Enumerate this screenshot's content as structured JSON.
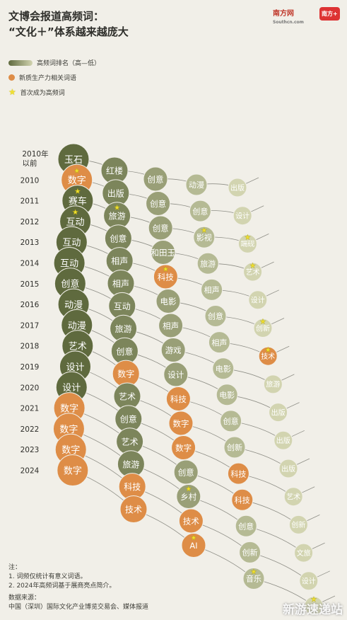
{
  "header": {
    "title_line1": "文博会报道高频词：",
    "title_line2": "“文化＋”体系越来越庞大",
    "logo_site": "南方网",
    "logo_site_sub": "Southcn.com",
    "logo_app": "南方+"
  },
  "legend": {
    "rank": "高频词排名（高—低）",
    "new_productivity": "新质生产力相关词语",
    "first_time": "首次成为高频词"
  },
  "notes": {
    "heading": "注：",
    "note1": "1. 词频仅统计有意义词语。",
    "note2": "2. 2024年高频词基于展商亮点简介。",
    "source_heading": "数据来源：",
    "source": "中国（深圳）国际文化产业博览交易会、媒体报道"
  },
  "watermark": "新游速递站",
  "colors": {
    "rank_dark": "#5f6a3e",
    "rank_light": "#d2d4b0",
    "new_productivity": "#de8d47",
    "first_time_star": "#f0e030",
    "background": "#f1efe8"
  },
  "chart_data": {
    "type": "ranked-bubble",
    "years": [
      "2010年以前",
      "2010",
      "2011",
      "2012",
      "2013",
      "2014",
      "2015",
      "2016",
      "2017",
      "2018",
      "2019",
      "2020",
      "2021",
      "2022",
      "2023",
      "2024"
    ],
    "series": [
      {
        "year": "2010年以前",
        "words": [
          {
            "w": "玉石"
          },
          {
            "w": "红楼"
          },
          {
            "w": "创意"
          },
          {
            "w": "动漫"
          },
          {
            "w": "出版"
          }
        ]
      },
      {
        "year": "2010",
        "words": [
          {
            "w": "数字",
            "np": true,
            "star": true
          },
          {
            "w": "出版"
          },
          {
            "w": "创意"
          },
          {
            "w": "创意"
          },
          {
            "w": "设计"
          }
        ]
      },
      {
        "year": "2011",
        "words": [
          {
            "w": "赛车",
            "star": true
          },
          {
            "w": "旅游",
            "star": true
          },
          {
            "w": "创意"
          },
          {
            "w": "影视",
            "star": true
          },
          {
            "w": "端砚",
            "star": true
          }
        ]
      },
      {
        "year": "2012",
        "words": [
          {
            "w": "互动",
            "star": true
          },
          {
            "w": "创意"
          },
          {
            "w": "和田玉"
          },
          {
            "w": "旅游"
          },
          {
            "w": "艺术",
            "star": true
          }
        ]
      },
      {
        "year": "2013",
        "words": [
          {
            "w": "互动"
          },
          {
            "w": "相声"
          },
          {
            "w": "科技",
            "np": true,
            "star": true
          },
          {
            "w": "相声"
          },
          {
            "w": "设计"
          }
        ]
      },
      {
        "year": "2014",
        "words": [
          {
            "w": "互动"
          },
          {
            "w": "相声"
          },
          {
            "w": "电影"
          },
          {
            "w": "创意"
          },
          {
            "w": "创新",
            "star": true
          }
        ]
      },
      {
        "year": "2015",
        "words": [
          {
            "w": "创意"
          },
          {
            "w": "互动"
          },
          {
            "w": "相声"
          },
          {
            "w": "相声"
          },
          {
            "w": "技术",
            "np": true,
            "star": true
          }
        ]
      },
      {
        "year": "2016",
        "words": [
          {
            "w": "动漫"
          },
          {
            "w": "旅游"
          },
          {
            "w": "游戏"
          },
          {
            "w": "电影"
          },
          {
            "w": "旅游"
          }
        ]
      },
      {
        "year": "2017",
        "words": [
          {
            "w": "动漫"
          },
          {
            "w": "创意"
          },
          {
            "w": "设计"
          },
          {
            "w": "电影"
          },
          {
            "w": "出版"
          }
        ]
      },
      {
        "year": "2018",
        "words": [
          {
            "w": "艺术"
          },
          {
            "w": "数字",
            "np": true
          },
          {
            "w": "科技",
            "np": true
          },
          {
            "w": "创意"
          },
          {
            "w": "出版"
          }
        ]
      },
      {
        "year": "2019",
        "words": [
          {
            "w": "设计"
          },
          {
            "w": "艺术"
          },
          {
            "w": "数字",
            "np": true
          },
          {
            "w": "创新"
          },
          {
            "w": "出版"
          }
        ]
      },
      {
        "year": "2020",
        "words": [
          {
            "w": "设计"
          },
          {
            "w": "创意"
          },
          {
            "w": "数字",
            "np": true
          },
          {
            "w": "科技",
            "np": true
          },
          {
            "w": "艺术"
          }
        ]
      },
      {
        "year": "2021",
        "words": [
          {
            "w": "数字",
            "np": true
          },
          {
            "w": "艺术"
          },
          {
            "w": "创意"
          },
          {
            "w": "科技",
            "np": true
          },
          {
            "w": "创新"
          }
        ]
      },
      {
        "year": "2022",
        "words": [
          {
            "w": "数字",
            "np": true
          },
          {
            "w": "旅游"
          },
          {
            "w": "乡村",
            "star": true
          },
          {
            "w": "创意"
          },
          {
            "w": "文旅"
          }
        ]
      },
      {
        "year": "2023",
        "words": [
          {
            "w": "数字",
            "np": true
          },
          {
            "w": "科技",
            "np": true
          },
          {
            "w": "技术",
            "np": true
          },
          {
            "w": "创新"
          },
          {
            "w": "设计"
          }
        ]
      },
      {
        "year": "2024",
        "words": [
          {
            "w": "数字",
            "np": true
          },
          {
            "w": "技术",
            "np": true
          },
          {
            "w": "AI",
            "np": true,
            "star": true
          },
          {
            "w": "音乐",
            "star": true
          },
          {
            "w": "IP",
            "star": true
          }
        ]
      }
    ]
  }
}
